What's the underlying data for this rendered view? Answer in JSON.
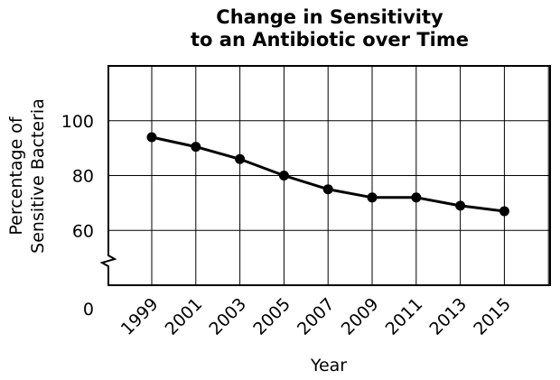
{
  "chart_data": {
    "type": "line",
    "title_line1": "Change in Sensitivity",
    "title_line2": "to an Antibiotic over Time",
    "xlabel": "Year",
    "ylabel_line1": "Percentage of",
    "ylabel_line2": "Sensitive Bacteria",
    "x": [
      "1999",
      "2001",
      "2003",
      "2005",
      "2007",
      "2009",
      "2011",
      "2013",
      "2015"
    ],
    "y": [
      94,
      90.5,
      86,
      80,
      75,
      72,
      72,
      69,
      67
    ],
    "y_ticks": [
      60,
      80,
      100
    ],
    "y_zero_label": "0",
    "ylim": [
      40,
      120
    ],
    "axis_break": true,
    "grid": true
  }
}
